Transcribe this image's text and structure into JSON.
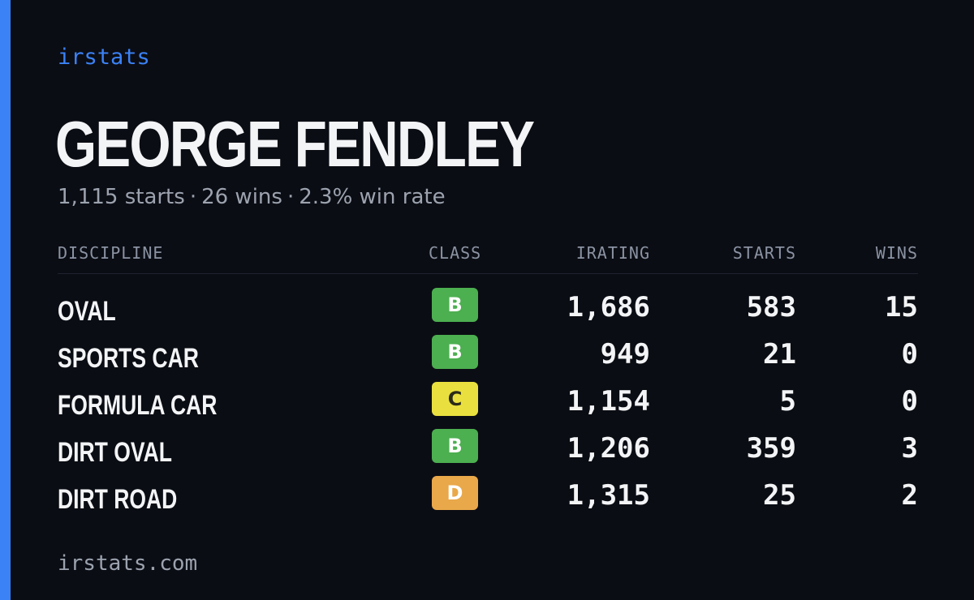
{
  "brand": "irstats",
  "driver": {
    "name": "GEORGE FENDLEY",
    "starts_text": "1,115 starts",
    "wins_text": "26 wins",
    "win_rate_text": "2.3% win rate",
    "separator": "·"
  },
  "table": {
    "headers": {
      "discipline": "DISCIPLINE",
      "class": "CLASS",
      "irating": "IRATING",
      "starts": "STARTS",
      "wins": "WINS"
    },
    "rows": [
      {
        "discipline": "OVAL",
        "class": "B",
        "class_color": "#4caf50",
        "class_text_color": "#ffffff",
        "irating": "1,686",
        "starts": "583",
        "wins": "15"
      },
      {
        "discipline": "SPORTS CAR",
        "class": "B",
        "class_color": "#4caf50",
        "class_text_color": "#ffffff",
        "irating": "949",
        "starts": "21",
        "wins": "0"
      },
      {
        "discipline": "FORMULA CAR",
        "class": "C",
        "class_color": "#e9e03f",
        "class_text_color": "#2a2a1a",
        "irating": "1,154",
        "starts": "5",
        "wins": "0"
      },
      {
        "discipline": "DIRT OVAL",
        "class": "B",
        "class_color": "#4caf50",
        "class_text_color": "#ffffff",
        "irating": "1,206",
        "starts": "359",
        "wins": "3"
      },
      {
        "discipline": "DIRT ROAD",
        "class": "D",
        "class_color": "#e9a84a",
        "class_text_color": "#ffffff",
        "irating": "1,315",
        "starts": "25",
        "wins": "2"
      }
    ]
  },
  "footer": "irstats.com",
  "colors": {
    "accent": "#3b82f6",
    "background": "#0b0d14"
  }
}
